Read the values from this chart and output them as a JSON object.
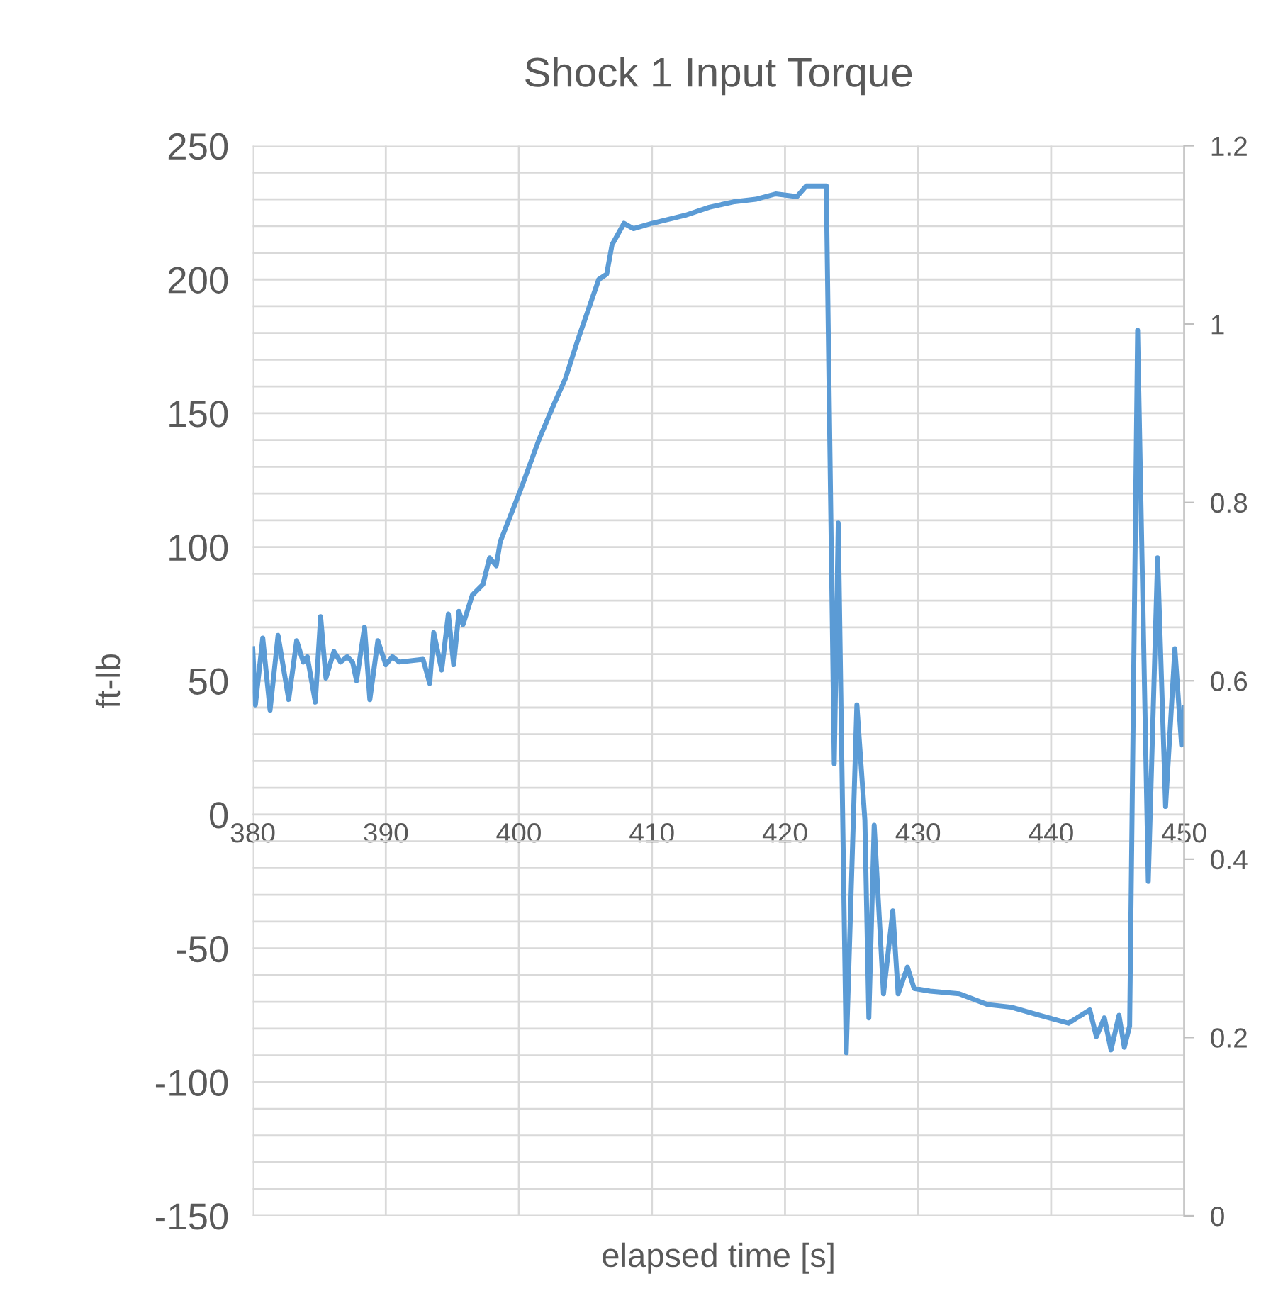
{
  "chart_data": {
    "type": "line",
    "title": "Shock 1 Input Torque",
    "xlabel": "elapsed time [s]",
    "ylabel": "ft-lb",
    "xlim": [
      380,
      450
    ],
    "xticks": [
      380,
      390,
      400,
      410,
      420,
      430,
      440,
      450
    ],
    "ylim": [
      -150,
      250
    ],
    "yticks": [
      -150,
      {
        "value": -140,
        "label": null
      },
      {
        "value": -130,
        "label": null
      },
      {
        "value": -120,
        "label": null
      },
      {
        "value": -110,
        "label": null
      },
      -100,
      {
        "value": -90,
        "label": null
      },
      {
        "value": -80,
        "label": null
      },
      {
        "value": -70,
        "label": null
      },
      {
        "value": -60,
        "label": null
      },
      -50,
      {
        "value": -40,
        "label": null
      },
      {
        "value": -30,
        "label": null
      },
      {
        "value": -20,
        "label": null
      },
      {
        "value": -10,
        "label": null
      },
      0,
      {
        "value": 10,
        "label": null
      },
      {
        "value": 20,
        "label": null
      },
      {
        "value": 30,
        "label": null
      },
      {
        "value": 40,
        "label": null
      },
      50,
      {
        "value": 60,
        "label": null
      },
      {
        "value": 70,
        "label": null
      },
      {
        "value": 80,
        "label": null
      },
      {
        "value": 90,
        "label": null
      },
      100,
      {
        "value": 110,
        "label": null
      },
      {
        "value": 120,
        "label": null
      },
      {
        "value": 130,
        "label": null
      },
      {
        "value": 140,
        "label": null
      },
      150,
      {
        "value": 160,
        "label": null
      },
      {
        "value": 170,
        "label": null
      },
      {
        "value": 180,
        "label": null
      },
      {
        "value": 190,
        "label": null
      },
      200,
      {
        "value": 210,
        "label": null
      },
      {
        "value": 220,
        "label": null
      },
      {
        "value": 230,
        "label": null
      },
      {
        "value": 240,
        "label": null
      },
      250
    ],
    "y2lim": [
      0,
      1.2
    ],
    "y2ticks": [
      0,
      0.2,
      0.4,
      0.6,
      0.8,
      1,
      1.2
    ],
    "grid": true,
    "marker": "none",
    "line_style": "solid",
    "series": [
      {
        "color": "#5b9bd5",
        "x": [
          380.0,
          380.2,
          380.75,
          381.3,
          381.9,
          382.7,
          383.3,
          383.8,
          384.1,
          384.7,
          385.1,
          385.5,
          386.1,
          386.6,
          387.1,
          387.5,
          387.8,
          388.4,
          388.8,
          389.4,
          390.0,
          390.5,
          391.0,
          392.8,
          393.3,
          393.6,
          394.2,
          394.7,
          395.1,
          395.5,
          395.8,
          396.5,
          397.3,
          397.8,
          398.3,
          398.6,
          400.1,
          401.5,
          402.6,
          403.5,
          404.4,
          406.0,
          406.6,
          407.0,
          407.9,
          408.6,
          410.0,
          412.5,
          414.3,
          416.1,
          417.8,
          419.3,
          420.9,
          421.6,
          423.1,
          423.7,
          424.0,
          424.6,
          425.4,
          426.0,
          426.3,
          426.7,
          427.4,
          428.1,
          428.5,
          429.2,
          429.7,
          430.9,
          433.1,
          435.2,
          437.0,
          439.1,
          441.3,
          442.9,
          443.4,
          444.0,
          444.5,
          445.1,
          445.5,
          445.9,
          446.5,
          447.3,
          448.0,
          448.6,
          449.3,
          449.8,
          450.0
        ],
        "values": [
          62,
          41,
          66,
          39,
          67,
          43,
          65,
          57,
          59,
          42,
          74,
          51,
          61,
          57,
          59,
          57,
          50,
          70,
          43,
          65,
          56,
          59,
          57,
          58,
          49,
          68,
          54,
          75,
          56,
          76,
          71,
          82,
          86,
          96,
          93,
          102,
          121,
          140,
          153,
          163,
          177,
          200,
          202,
          213,
          221,
          219,
          221,
          224,
          227,
          229,
          230,
          232,
          231,
          235,
          235,
          19,
          109,
          -89,
          41,
          -2,
          -76,
          -4,
          -67,
          -36,
          -67,
          -57,
          -65,
          -66,
          -67,
          -71,
          -72,
          -75,
          -78,
          -73,
          -83,
          -76,
          -88,
          -75,
          -87,
          -79,
          181,
          -25,
          96,
          3,
          62,
          26,
          40
        ]
      }
    ]
  }
}
